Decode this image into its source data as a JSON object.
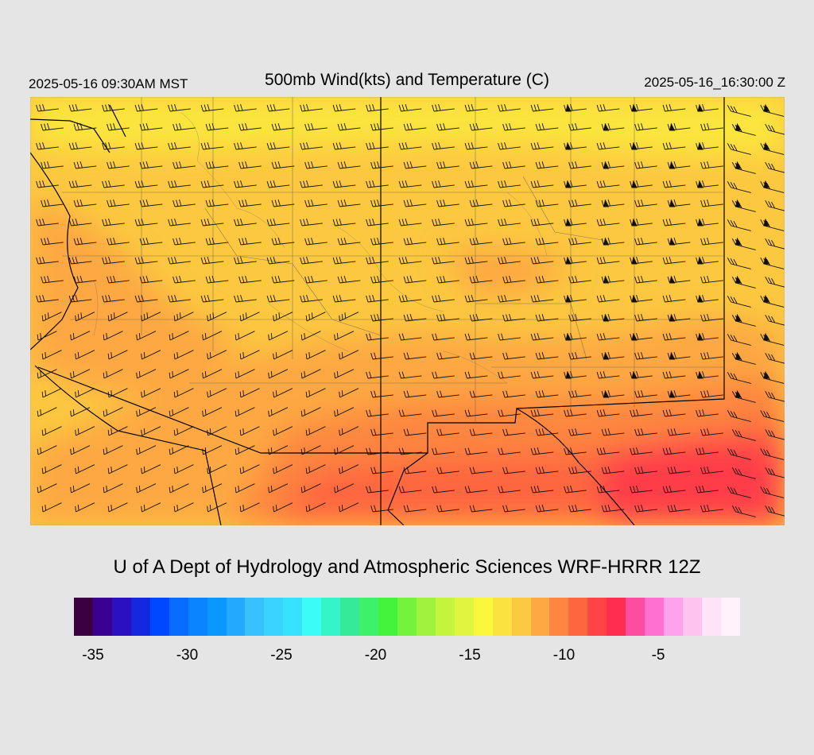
{
  "header": {
    "local_time": "2025-05-16 09:30AM MST",
    "title": "500mb Wind(kts) and Temperature (C)",
    "utc_time": "2025-05-16_16:30:00 Z"
  },
  "credit": "U of A Dept of Hydrology and Atmospheric Sciences WRF-HRRR 12Z",
  "colorbar": {
    "colors": [
      "#3a0040",
      "#3a0090",
      "#2a10c0",
      "#1428e0",
      "#0048ff",
      "#0a6cff",
      "#0a84ff",
      "#0a98ff",
      "#23aaff",
      "#38c0ff",
      "#3ad2ff",
      "#36e2ff",
      "#3cfcfa",
      "#35f5c8",
      "#35eb9a",
      "#3df16a",
      "#44f43c",
      "#74f33c",
      "#a0f23c",
      "#c2f53c",
      "#e0f540",
      "#fbf73c",
      "#fce23e",
      "#fcca40",
      "#fda842",
      "#fd8640",
      "#fe6640",
      "#fe4444",
      "#ff2d50",
      "#fe4ca0",
      "#ff70d0",
      "#ffa2ee",
      "#ffc3ef",
      "#ffe4f8",
      "#fff2fb"
    ],
    "ticks": [
      {
        "value": -35,
        "label": "-35"
      },
      {
        "value": -30,
        "label": "-30"
      },
      {
        "value": -25,
        "label": "-25"
      },
      {
        "value": -20,
        "label": "-20"
      },
      {
        "value": -15,
        "label": "-15"
      },
      {
        "value": -10,
        "label": "-10"
      },
      {
        "value": -5,
        "label": "-5"
      }
    ]
  },
  "map": {
    "field": "500mb temperature (C) with wind barbs (kts)",
    "temperature_range_shown": [
      -15,
      -8
    ],
    "colors": {
      "cold": "#fbe63e",
      "cool": "#fcc840",
      "mid": "#fda842",
      "warm": "#fd8640",
      "warmer": "#fe6640",
      "hot": "#ff3d48",
      "barb": "#111111",
      "border": "#000000"
    }
  }
}
